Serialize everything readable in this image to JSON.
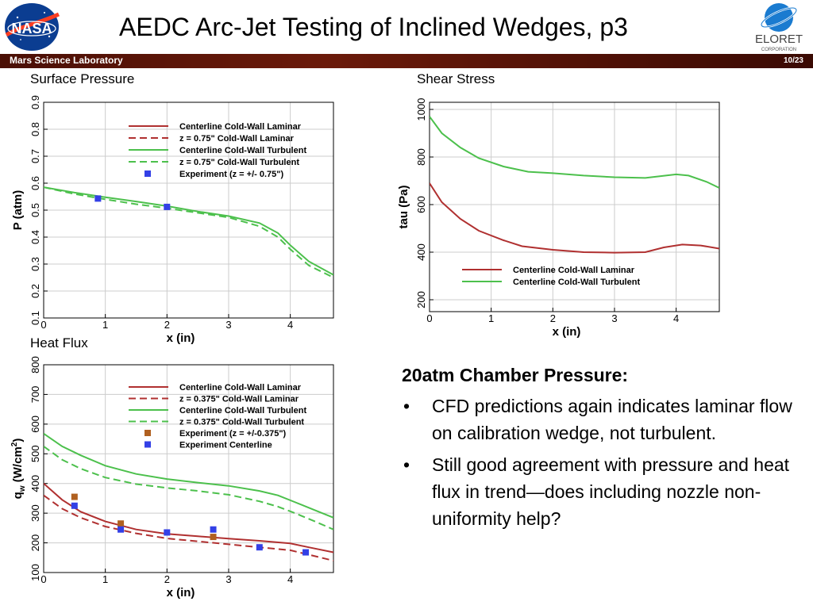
{
  "header": {
    "title": "AEDC Arc-Jet Testing of Inclined Wedges, p3",
    "subtitle": "Mars Science Laboratory",
    "page": "10/23",
    "logo_left": "NASA",
    "logo_right": "ELORET",
    "logo_right_sub": "CORPORATION",
    "bar_color": "#5a1508"
  },
  "chart_data": [
    {
      "type": "line",
      "title": "Surface Pressure",
      "xlabel": "x (in)",
      "ylabel": "P (atm)",
      "xlim": [
        0,
        4.7
      ],
      "ylim": [
        0.1,
        0.9
      ],
      "xticks": [
        0,
        1,
        2,
        3,
        4
      ],
      "yticks": [
        0.1,
        0.2,
        0.3,
        0.4,
        0.5,
        0.6,
        0.7,
        0.8,
        0.9
      ],
      "grid": true,
      "legend_position": "top-right",
      "series": [
        {
          "name": "Centerline Cold-Wall Laminar",
          "color": "#b03030",
          "dash": "solid",
          "x": [
            0,
            4.7
          ],
          "y": [
            null,
            null
          ]
        },
        {
          "name": "z = 0.75\" Cold-Wall Laminar",
          "color": "#b03030",
          "dash": "dashed",
          "x": [
            0,
            4.7
          ],
          "y": [
            null,
            null
          ]
        },
        {
          "name": "Centerline Cold-Wall Turbulent",
          "color": "#4cc04c",
          "dash": "solid",
          "x": [
            0,
            0.5,
            1.0,
            1.5,
            2.0,
            2.5,
            3.0,
            3.5,
            3.8,
            4.0,
            4.3,
            4.7
          ],
          "y": [
            0.585,
            0.565,
            0.548,
            0.532,
            0.515,
            0.495,
            0.478,
            0.452,
            0.415,
            0.37,
            0.31,
            0.26
          ]
        },
        {
          "name": "z = 0.75\" Cold-Wall Turbulent",
          "color": "#4cc04c",
          "dash": "dashed",
          "x": [
            0,
            0.5,
            1.0,
            1.5,
            2.0,
            2.5,
            3.0,
            3.5,
            3.8,
            4.0,
            4.3,
            4.7
          ],
          "y": [
            0.585,
            0.56,
            0.54,
            0.522,
            0.507,
            0.49,
            0.473,
            0.44,
            0.4,
            0.355,
            0.295,
            0.25
          ]
        },
        {
          "name": "Experiment (z = +/- 0.75\")",
          "color": "#3340e6",
          "marker": "square",
          "x": [
            0.88,
            2.0
          ],
          "y": [
            0.543,
            0.512
          ]
        }
      ]
    },
    {
      "type": "line",
      "title": "Shear Stress",
      "xlabel": "x (in)",
      "ylabel": "tau (Pa)",
      "xlim": [
        0,
        4.7
      ],
      "ylim": [
        150,
        1030
      ],
      "xticks": [
        0,
        1,
        2,
        3,
        4
      ],
      "yticks": [
        200,
        400,
        600,
        800,
        1000
      ],
      "grid": true,
      "legend_position": "bottom-right",
      "series": [
        {
          "name": "Centerline Cold-Wall Laminar",
          "color": "#b03030",
          "dash": "solid",
          "x": [
            0,
            0.2,
            0.5,
            0.8,
            1.2,
            1.5,
            2.0,
            2.5,
            3.0,
            3.5,
            3.8,
            4.1,
            4.4,
            4.7
          ],
          "y": [
            690,
            610,
            540,
            490,
            450,
            425,
            410,
            400,
            398,
            400,
            420,
            432,
            428,
            415
          ]
        },
        {
          "name": "Centerline Cold-Wall Turbulent",
          "color": "#4cc04c",
          "dash": "solid",
          "x": [
            0,
            0.2,
            0.5,
            0.8,
            1.2,
            1.6,
            2.0,
            2.5,
            3.0,
            3.5,
            4.0,
            4.2,
            4.5,
            4.7
          ],
          "y": [
            970,
            900,
            840,
            795,
            760,
            738,
            732,
            722,
            715,
            712,
            727,
            722,
            695,
            670
          ]
        }
      ]
    },
    {
      "type": "line",
      "title": "Heat Flux",
      "xlabel": "x (in)",
      "ylabel": "q",
      "ylabel_sub": "w",
      "ylabel_unit": " (W/cm",
      "ylabel_sup": "2",
      "ylabel_end": ")",
      "xlim": [
        0,
        4.7
      ],
      "ylim": [
        100,
        800
      ],
      "xticks": [
        0,
        1,
        2,
        3,
        4
      ],
      "yticks": [
        100,
        200,
        300,
        400,
        500,
        600,
        700,
        800
      ],
      "grid": true,
      "legend_position": "top-right",
      "series": [
        {
          "name": "Centerline Cold-Wall Laminar",
          "color": "#b03030",
          "dash": "solid",
          "x": [
            0,
            0.3,
            0.6,
            1.0,
            1.5,
            2.0,
            2.5,
            3.0,
            3.5,
            4.0,
            4.3,
            4.7
          ],
          "y": [
            400,
            345,
            305,
            272,
            245,
            230,
            222,
            214,
            207,
            198,
            185,
            168
          ]
        },
        {
          "name": "z = 0.375\" Cold-Wall Laminar",
          "color": "#b03030",
          "dash": "dashed",
          "x": [
            0,
            0.3,
            0.6,
            1.0,
            1.5,
            2.0,
            2.5,
            3.0,
            3.5,
            4.0,
            4.3,
            4.7
          ],
          "y": [
            360,
            315,
            285,
            255,
            232,
            215,
            205,
            195,
            185,
            175,
            160,
            140
          ]
        },
        {
          "name": "Centerline Cold-Wall Turbulent",
          "color": "#4cc04c",
          "dash": "solid",
          "x": [
            0,
            0.3,
            0.6,
            1.0,
            1.5,
            2.0,
            2.5,
            3.0,
            3.5,
            3.8,
            4.1,
            4.4,
            4.7
          ],
          "y": [
            568,
            525,
            495,
            460,
            432,
            415,
            403,
            392,
            375,
            360,
            335,
            310,
            285
          ]
        },
        {
          "name": "z = 0.375\" Cold-Wall Turbulent",
          "color": "#4cc04c",
          "dash": "dashed",
          "x": [
            0,
            0.3,
            0.6,
            1.0,
            1.5,
            2.0,
            2.5,
            3.0,
            3.5,
            3.8,
            4.1,
            4.4,
            4.7
          ],
          "y": [
            525,
            480,
            450,
            420,
            398,
            385,
            375,
            362,
            340,
            322,
            298,
            272,
            245
          ]
        },
        {
          "name": "Experiment (z = +/-0.375\")",
          "color": "#b06020",
          "marker": "square",
          "x": [
            0.5,
            1.25,
            2.75
          ],
          "y": [
            355,
            265,
            220
          ]
        },
        {
          "name": "Experiment Centerline",
          "color": "#3340e6",
          "marker": "square",
          "x": [
            0.5,
            1.25,
            2.0,
            2.75,
            3.5,
            4.25
          ],
          "y": [
            325,
            245,
            235,
            245,
            185,
            168
          ]
        }
      ]
    }
  ],
  "text_box": {
    "heading": "20atm Chamber Pressure:",
    "bullet_char": "•",
    "bullets": [
      "CFD predictions again indicates laminar flow on calibration wedge, not turbulent.",
      "Still good agreement with pressure and heat flux in trend—does including nozzle non-uniformity help?"
    ]
  }
}
